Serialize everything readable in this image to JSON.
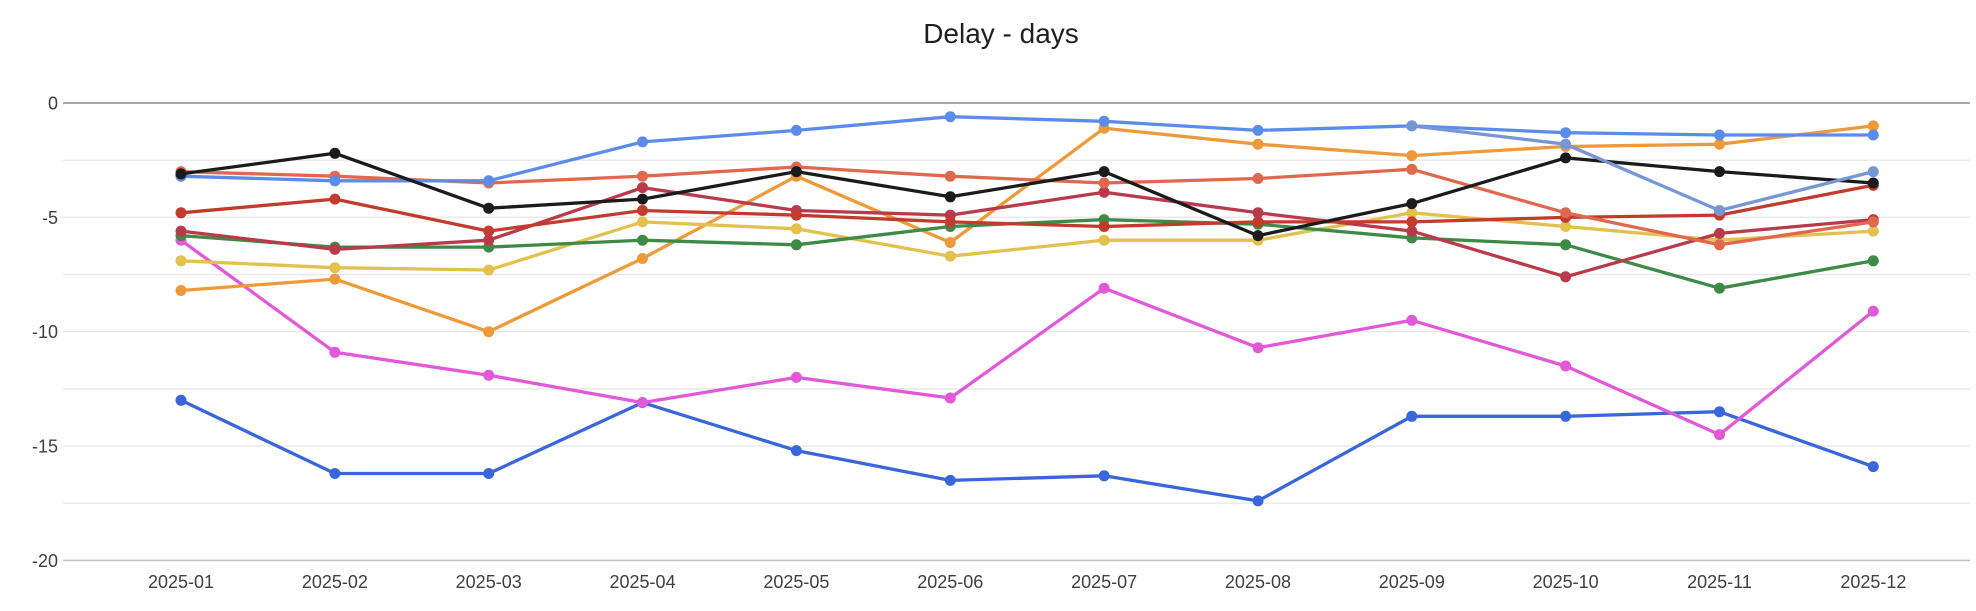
{
  "chart": {
    "title": "Delay - days"
  },
  "chart_data": {
    "type": "line",
    "title": "Delay - days",
    "xlabel": "",
    "ylabel": "",
    "ylim": [
      -20,
      0
    ],
    "grid": "horizontal every 2.5, labeled every 5, zero line darker",
    "legend": "none",
    "marker": "circle",
    "categories": [
      "2025-01",
      "2025-02",
      "2025-03",
      "2025-04",
      "2025-05",
      "2025-06",
      "2025-07",
      "2025-08",
      "2025-09",
      "2025-10",
      "2025-11",
      "2025-12"
    ],
    "yticks": [
      {
        "value": 0,
        "label": "0"
      },
      {
        "value": -5,
        "label": "-5"
      },
      {
        "value": -10,
        "label": "-10"
      },
      {
        "value": -15,
        "label": "-15"
      },
      {
        "value": -20,
        "label": "-20"
      }
    ],
    "axis_colors": {
      "grid_line": "#e8e8e8",
      "zero_line": "#a6a6a6",
      "baseline": "#c2c2c2",
      "tick_text": "#404040",
      "title_text": "#1f1f1f"
    },
    "series": [
      {
        "name": "royal-blue",
        "color": "#3a66db",
        "values": [
          -13.0,
          -16.2,
          -16.2,
          -13.1,
          -15.2,
          -16.5,
          -16.3,
          -17.4,
          -13.7,
          -13.7,
          -13.5,
          -15.9
        ]
      },
      {
        "name": "magenta",
        "color": "#e159d8",
        "values": [
          -6.0,
          -10.9,
          -11.9,
          -13.1,
          -12.0,
          -12.9,
          -8.1,
          -10.7,
          -9.5,
          -11.5,
          -14.5,
          -9.1
        ]
      },
      {
        "name": "orange",
        "color": "#ee9a3a",
        "values": [
          -8.2,
          -7.7,
          -10.0,
          -6.8,
          -3.2,
          -6.1,
          -1.1,
          -1.8,
          -2.3,
          -1.9,
          -1.8,
          -1.0
        ]
      },
      {
        "name": "yellow",
        "color": "#e2c14f",
        "values": [
          -6.9,
          -7.2,
          -7.3,
          -5.2,
          -5.5,
          -6.7,
          -6.0,
          -6.0,
          -4.8,
          -5.4,
          -6.0,
          -5.6
        ]
      },
      {
        "name": "green",
        "color": "#3f8a47",
        "values": [
          -5.8,
          -6.3,
          -6.3,
          -6.0,
          -6.2,
          -5.4,
          -5.1,
          -5.3,
          -5.9,
          -6.2,
          -8.1,
          -6.9
        ]
      },
      {
        "name": "dark-red",
        "color": "#b93b4b",
        "values": [
          -5.6,
          -6.4,
          -6.0,
          -3.7,
          -4.7,
          -4.9,
          -3.9,
          -4.8,
          -5.6,
          -7.6,
          -5.7,
          -5.1
        ]
      },
      {
        "name": "red",
        "color": "#c23b2c",
        "values": [
          -4.8,
          -4.2,
          -5.6,
          -4.7,
          -4.9,
          -5.2,
          -5.4,
          -5.2,
          -5.2,
          -5.0,
          -4.9,
          -3.6
        ]
      },
      {
        "name": "red-orange",
        "color": "#e0684f",
        "values": [
          -3.0,
          -3.2,
          -3.5,
          -3.2,
          -2.8,
          -3.2,
          -3.5,
          -3.3,
          -2.9,
          -4.8,
          -6.2,
          -5.2
        ]
      },
      {
        "name": "light-blue",
        "color": "#5c8cea",
        "values": [
          -3.2,
          -3.4,
          -3.4,
          -1.7,
          -1.2,
          -0.6,
          -0.8,
          -1.2,
          -1.0,
          -1.3,
          -1.4,
          -1.4
        ]
      },
      {
        "name": "black",
        "color": "#1b1b1b",
        "values": [
          -3.1,
          -2.2,
          -4.6,
          -4.2,
          -3.0,
          -4.1,
          -3.0,
          -5.8,
          -4.4,
          -2.4,
          -3.0,
          -3.5
        ]
      },
      {
        "name": "steel-blue",
        "color": "#7697d3",
        "values": [
          null,
          null,
          null,
          null,
          null,
          null,
          null,
          null,
          -1.0,
          -1.8,
          -4.7,
          -3.0
        ]
      }
    ]
  }
}
